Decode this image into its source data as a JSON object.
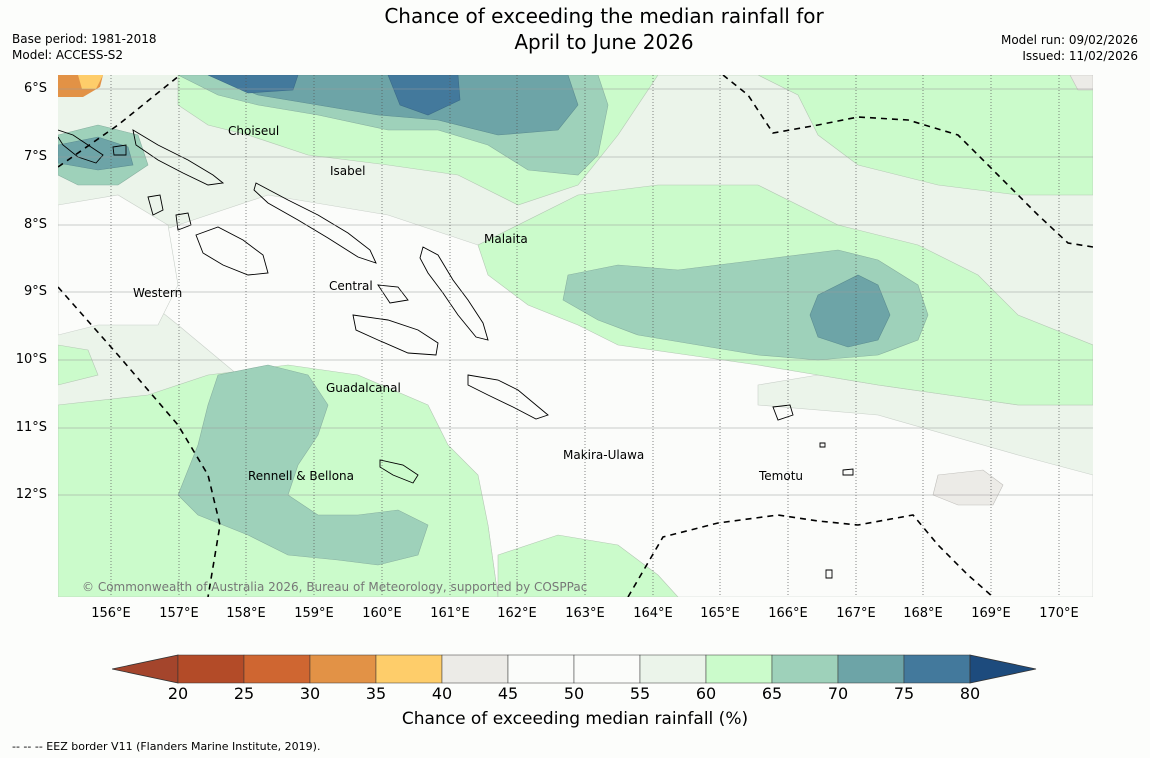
{
  "title_line1": "Chance of exceeding the median rainfall for",
  "title_line2": "April to June 2026",
  "base_period": "Base period: 1981-2018",
  "model": "Model: ACCESS-S2",
  "model_run": "Model run: 09/02/2026",
  "issued": "Issued: 11/02/2026",
  "lat_labels": [
    "6°S",
    "7°S",
    "8°S",
    "9°S",
    "10°S",
    "11°S",
    "12°S"
  ],
  "lon_labels": [
    "156°E",
    "157°E",
    "158°E",
    "159°E",
    "160°E",
    "161°E",
    "162°E",
    "163°E",
    "164°E",
    "165°E",
    "166°E",
    "167°E",
    "168°E",
    "169°E",
    "170°E"
  ],
  "places": {
    "choiseul": "Choiseul",
    "isabel": "Isabel",
    "malaita": "Malaita",
    "central": "Central",
    "western": "Western",
    "guadalcanal": "Guadalcanal",
    "makira": "Makira-Ulawa",
    "rennell": "Rennell & Bellona",
    "temotu": "Temotu"
  },
  "copyright": "© Commonwealth of Australia 2026, Bureau of Meteorology, supported by COSPPac",
  "colorbar": {
    "ticks": [
      "20",
      "25",
      "30",
      "35",
      "40",
      "45",
      "50",
      "55",
      "60",
      "65",
      "70",
      "75",
      "80"
    ],
    "colors": [
      "#a4452c",
      "#b34b28",
      "#cf6631",
      "#e29246",
      "#fecd6a",
      "#ecebe7",
      "#fbfcfa",
      "#fbfcfa",
      "#ebf4ea",
      "#cbfbcb",
      "#9ed1ba",
      "#6da4a7",
      "#43799c",
      "#1d4b7d"
    ],
    "title": "Chance of exceeding median rainfall (%)"
  },
  "legend_eez": "--  --  -- EEZ border V11 (Flanders Marine Institute, 2019)."
}
